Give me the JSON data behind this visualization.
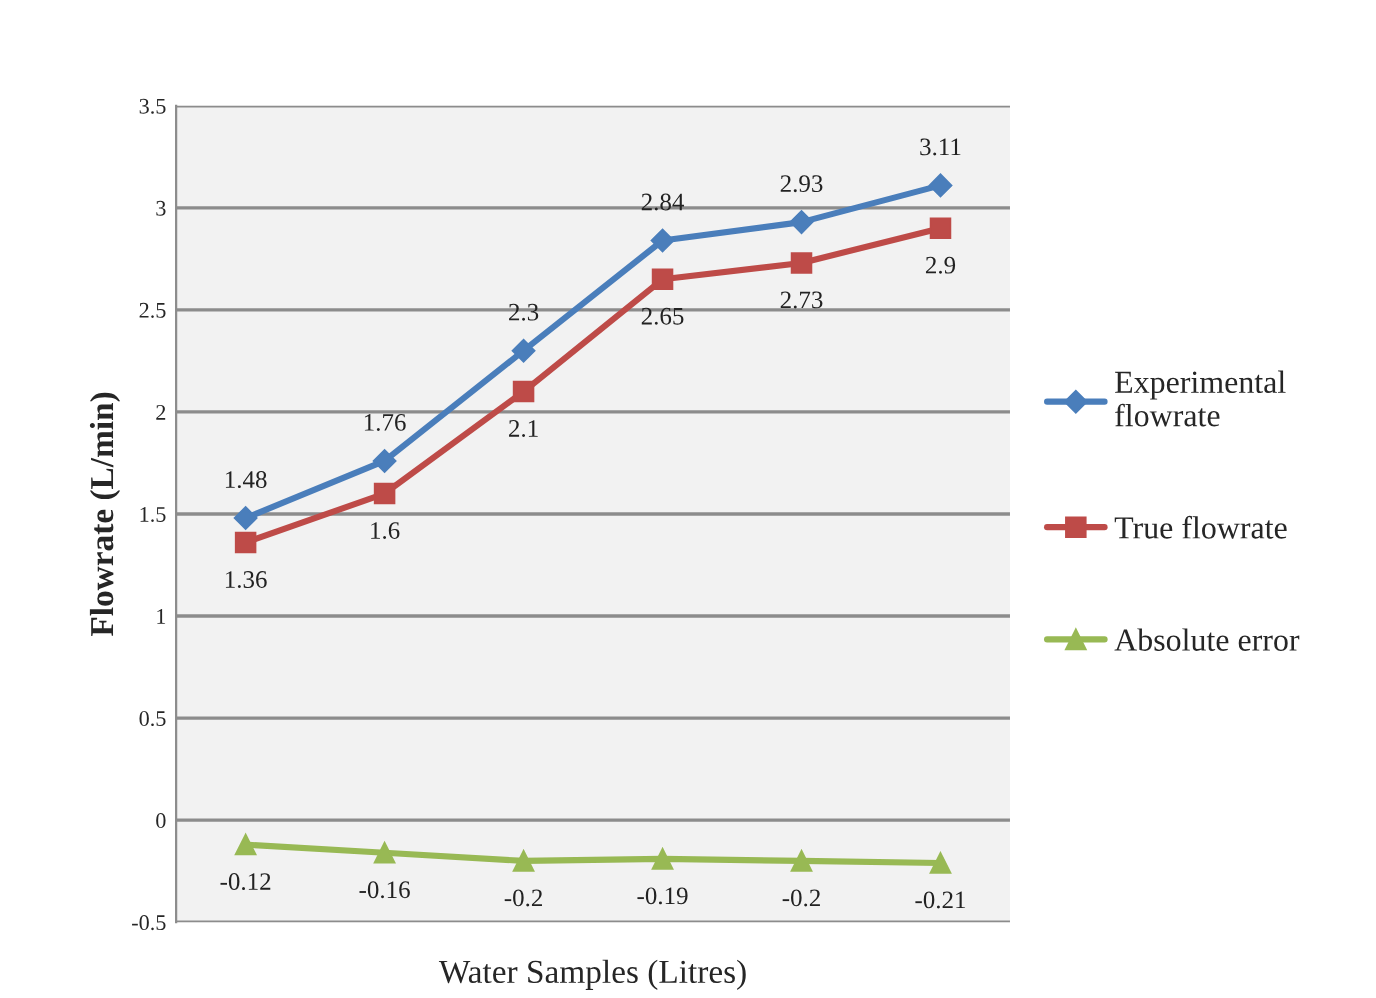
{
  "chart_data": {
    "type": "line",
    "xlabel": "Water Samples (Litres)",
    "ylabel": "Flowrate (L/min)",
    "categories": [
      null,
      null,
      null,
      null,
      null,
      null
    ],
    "series": [
      {
        "name": "Experimental flowrate",
        "color": "#4a7ebb",
        "marker": "diamond",
        "values": [
          1.48,
          1.76,
          2.3,
          2.84,
          2.93,
          3.11
        ]
      },
      {
        "name": "True flowrate",
        "color": "#be4b48",
        "marker": "square",
        "values": [
          1.36,
          1.6,
          2.1,
          2.65,
          2.73,
          2.9
        ]
      },
      {
        "name": "Absolute error",
        "color": "#98b954",
        "marker": "triangle",
        "values": [
          -0.12,
          -0.16,
          -0.2,
          -0.19,
          -0.2,
          -0.21
        ]
      }
    ],
    "ylim": [
      -0.5,
      3.5
    ],
    "yticks": [
      -0.5,
      0,
      0.5,
      1,
      1.5,
      2,
      2.5,
      3,
      3.5
    ],
    "grid": "y",
    "legend": "right",
    "data_labels": true,
    "line_style": "solid"
  }
}
